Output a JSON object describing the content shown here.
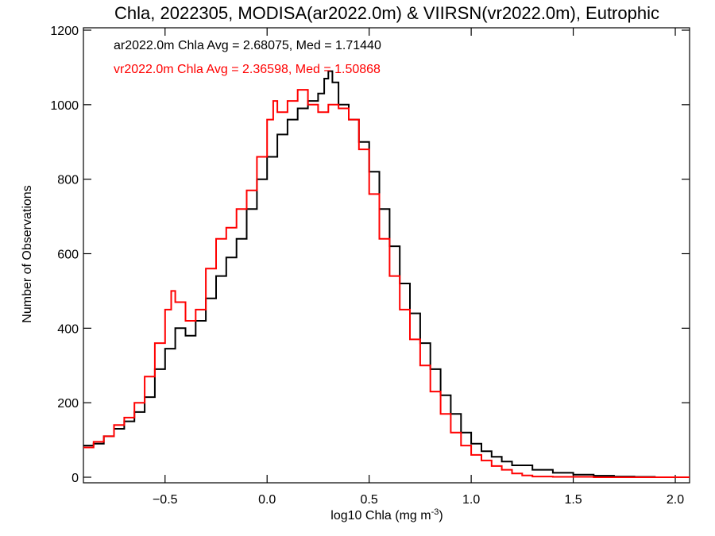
{
  "chart_data": {
    "type": "line",
    "step": true,
    "title": "Chla, 2022305, MODISA(ar2022.0m) & VIIRSN(vr2022.0m), Eutrophic",
    "xlabel_main": "log10 Chla (mg m",
    "xlabel_sup": "-3",
    "xlabel_close": ")",
    "ylabel": "Number of Observations",
    "xlim": [
      -0.9,
      2.07
    ],
    "ylim": [
      0,
      1200
    ],
    "xticks": [
      -0.5,
      0.0,
      0.5,
      1.0,
      1.5,
      2.0
    ],
    "xtick_labels": [
      "−0.5",
      "0.0",
      "0.5",
      "1.0",
      "1.5",
      "2.0"
    ],
    "yticks": [
      0,
      200,
      400,
      600,
      800,
      1000,
      1200
    ],
    "ytick_labels": [
      "0",
      "200",
      "400",
      "600",
      "800",
      "1000",
      "1200"
    ],
    "grid": false,
    "annotations": [
      {
        "text": "ar2022.0m Chla Avg = 2.68075, Med = 1.71440",
        "color": "#000000"
      },
      {
        "text": "vr2022.0m Chla Avg = 2.36598, Med = 1.50868",
        "color": "#ff0000"
      }
    ],
    "series": [
      {
        "color": "#000000",
        "x": [
          -0.9,
          -0.85,
          -0.8,
          -0.75,
          -0.7,
          -0.65,
          -0.6,
          -0.55,
          -0.5,
          -0.45,
          -0.4,
          -0.35,
          -0.3,
          -0.25,
          -0.2,
          -0.15,
          -0.1,
          -0.05,
          0.0,
          0.05,
          0.1,
          0.15,
          0.2,
          0.25,
          0.28,
          0.3,
          0.32,
          0.35,
          0.4,
          0.45,
          0.5,
          0.55,
          0.6,
          0.65,
          0.7,
          0.75,
          0.8,
          0.85,
          0.9,
          0.95,
          1.0,
          1.05,
          1.1,
          1.15,
          1.2,
          1.3,
          1.4,
          1.5,
          1.6,
          1.7,
          1.8,
          1.9,
          2.0,
          2.07
        ],
        "y": [
          85,
          90,
          110,
          130,
          150,
          175,
          215,
          290,
          345,
          400,
          380,
          420,
          480,
          540,
          590,
          640,
          720,
          800,
          860,
          920,
          960,
          990,
          1010,
          1030,
          1070,
          1090,
          1060,
          1000,
          960,
          900,
          820,
          720,
          620,
          520,
          440,
          360,
          290,
          220,
          170,
          120,
          90,
          70,
          55,
          42,
          32,
          20,
          12,
          7,
          4,
          2,
          1,
          0,
          0,
          0
        ]
      },
      {
        "color": "#ff0000",
        "x": [
          -0.9,
          -0.85,
          -0.8,
          -0.75,
          -0.7,
          -0.65,
          -0.6,
          -0.55,
          -0.5,
          -0.47,
          -0.45,
          -0.4,
          -0.35,
          -0.3,
          -0.25,
          -0.2,
          -0.15,
          -0.1,
          -0.05,
          0.0,
          0.03,
          0.05,
          0.1,
          0.15,
          0.2,
          0.25,
          0.3,
          0.35,
          0.4,
          0.45,
          0.5,
          0.55,
          0.6,
          0.65,
          0.7,
          0.75,
          0.8,
          0.85,
          0.9,
          0.95,
          1.0,
          1.05,
          1.1,
          1.15,
          1.2,
          1.25,
          1.3,
          1.4,
          1.5,
          1.6,
          1.7,
          1.8,
          1.9,
          2.07
        ],
        "y": [
          80,
          95,
          110,
          140,
          160,
          200,
          270,
          360,
          450,
          500,
          470,
          420,
          450,
          560,
          640,
          670,
          720,
          770,
          860,
          960,
          1010,
          980,
          1010,
          1040,
          1000,
          980,
          1000,
          990,
          960,
          880,
          760,
          640,
          540,
          450,
          370,
          300,
          230,
          170,
          120,
          85,
          60,
          45,
          30,
          20,
          10,
          5,
          2,
          1,
          1,
          0,
          0,
          0,
          0,
          0
        ]
      }
    ]
  }
}
